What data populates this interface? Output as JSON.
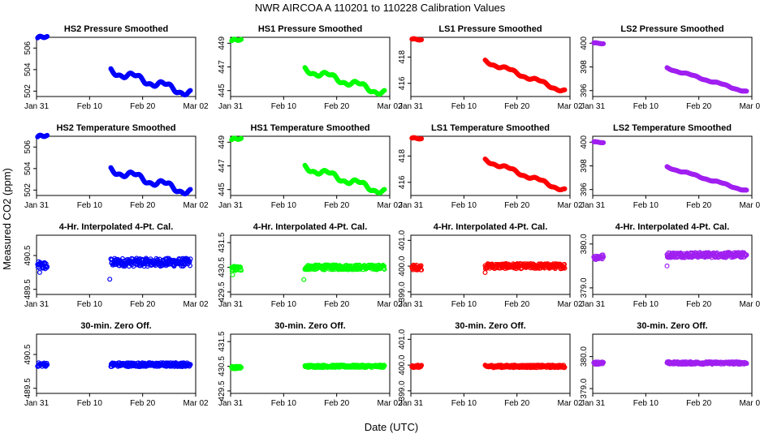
{
  "figure": {
    "title": "NWR   AIRCOA A   110201 to 110228   Calibration Values",
    "ylabel": "Measured CO2 (ppm)",
    "xlabel": "Date (UTC)",
    "x_ticks": [
      "Jan 31",
      "Feb 10",
      "Feb 20",
      "Mar 02"
    ]
  },
  "colors": {
    "blue": "#0000ff",
    "green": "#00ff00",
    "red": "#ff0000",
    "purple": "#a020f0"
  },
  "chart_data": [
    {
      "type": "scatter",
      "row": 0,
      "col": 0,
      "title": "HS2 Pressure Smoothed",
      "color": "blue",
      "ylim": [
        501.5,
        507
      ],
      "yticks": [
        502,
        504,
        506
      ],
      "ytick_labels": [
        "502",
        "504",
        "506"
      ],
      "segments": [
        {
          "x": [
            0.2,
            2
          ],
          "y": [
            506.8,
            506.8
          ]
        },
        {
          "x": [
            14,
            29
          ],
          "y": [
            503.9,
            501.8
          ]
        }
      ],
      "wiggle": 0.5
    },
    {
      "type": "scatter",
      "row": 0,
      "col": 1,
      "title": "HS1 Pressure Smoothed",
      "color": "green",
      "ylim": [
        444.5,
        449.5
      ],
      "yticks": [
        445,
        447,
        449
      ],
      "ytick_labels": [
        "445",
        "447",
        "449"
      ],
      "segments": [
        {
          "x": [
            0.2,
            2
          ],
          "y": [
            449.1,
            449.1
          ]
        },
        {
          "x": [
            14,
            29
          ],
          "y": [
            446.8,
            444.8
          ]
        }
      ],
      "wiggle": 0.4
    },
    {
      "type": "scatter",
      "row": 0,
      "col": 2,
      "title": "LS1 Pressure Smoothed",
      "color": "red",
      "ylim": [
        415,
        419.5
      ],
      "yticks": [
        416,
        418
      ],
      "ytick_labels": [
        "416",
        "418"
      ],
      "segments": [
        {
          "x": [
            0.2,
            2
          ],
          "y": [
            419.3,
            419.2
          ]
        },
        {
          "x": [
            14,
            29
          ],
          "y": [
            417.7,
            415.4
          ]
        }
      ],
      "wiggle": 0.2
    },
    {
      "type": "scatter",
      "row": 0,
      "col": 3,
      "title": "LS2 Pressure Smoothed",
      "color": "purple",
      "ylim": [
        395.5,
        400.5
      ],
      "yticks": [
        396,
        398,
        400
      ],
      "ytick_labels": [
        "396",
        "398",
        "400"
      ],
      "segments": [
        {
          "x": [
            0.2,
            2
          ],
          "y": [
            400.0,
            399.9
          ]
        },
        {
          "x": [
            14,
            29
          ],
          "y": [
            397.9,
            395.9
          ]
        }
      ],
      "wiggle": 0.1
    },
    {
      "type": "scatter",
      "row": 1,
      "col": 0,
      "title": "HS2 Temperature Smoothed",
      "color": "blue",
      "ylim": [
        501.5,
        507
      ],
      "yticks": [
        502,
        504,
        506
      ],
      "ytick_labels": [
        "502",
        "504",
        "506"
      ],
      "segments": [
        {
          "x": [
            0.2,
            2
          ],
          "y": [
            506.8,
            506.8
          ]
        },
        {
          "x": [
            14,
            29
          ],
          "y": [
            503.9,
            501.8
          ]
        }
      ],
      "wiggle": 0.5
    },
    {
      "type": "scatter",
      "row": 1,
      "col": 1,
      "title": "HS1 Temperature Smoothed",
      "color": "green",
      "ylim": [
        444.5,
        449.5
      ],
      "yticks": [
        445,
        447,
        449
      ],
      "ytick_labels": [
        "445",
        "447",
        "449"
      ],
      "segments": [
        {
          "x": [
            0.2,
            2
          ],
          "y": [
            449.1,
            449.1
          ]
        },
        {
          "x": [
            14,
            29
          ],
          "y": [
            446.9,
            444.8
          ]
        }
      ],
      "wiggle": 0.4
    },
    {
      "type": "scatter",
      "row": 1,
      "col": 2,
      "title": "LS1 Temperature Smoothed",
      "color": "red",
      "ylim": [
        415,
        419.5
      ],
      "yticks": [
        416,
        418
      ],
      "ytick_labels": [
        "416",
        "418"
      ],
      "segments": [
        {
          "x": [
            0.2,
            2
          ],
          "y": [
            419.3,
            419.2
          ]
        },
        {
          "x": [
            14,
            29
          ],
          "y": [
            417.7,
            415.4
          ]
        }
      ],
      "wiggle": 0.2
    },
    {
      "type": "scatter",
      "row": 1,
      "col": 3,
      "title": "LS2 Temperature Smoothed",
      "color": "purple",
      "ylim": [
        395.5,
        400.5
      ],
      "yticks": [
        396,
        398,
        400
      ],
      "ytick_labels": [
        "396",
        "398",
        "400"
      ],
      "segments": [
        {
          "x": [
            0.2,
            2
          ],
          "y": [
            400.0,
            399.9
          ]
        },
        {
          "x": [
            14,
            29
          ],
          "y": [
            397.9,
            395.9
          ]
        }
      ],
      "wiggle": 0.1
    },
    {
      "type": "scatter",
      "row": 2,
      "col": 0,
      "title": "4-Hr. Interpolated 4-Pt. Cal.",
      "color": "blue",
      "ylim": [
        489.35,
        491.1
      ],
      "yticks": [
        489.5,
        490.5
      ],
      "ytick_labels": [
        "489.5",
        "490.5"
      ],
      "segments": [
        {
          "x": [
            0.2,
            2
          ],
          "y": [
            490.2,
            490.2
          ]
        },
        {
          "x": [
            14,
            29
          ],
          "y": [
            490.3,
            490.3
          ]
        }
      ],
      "noise": 0.12,
      "outliers": [
        {
          "x": 13.8,
          "y": 489.8
        },
        {
          "x": 0.6,
          "y": 490.0
        }
      ]
    },
    {
      "type": "scatter",
      "row": 2,
      "col": 1,
      "title": "4-Hr. Interpolated 4-Pt. Cal.",
      "color": "green",
      "ylim": [
        429.4,
        431.8
      ],
      "yticks": [
        429.5,
        430.5,
        431.5
      ],
      "ytick_labels": [
        "429.5",
        "430.5",
        "431.5"
      ],
      "segments": [
        {
          "x": [
            0.2,
            2
          ],
          "y": [
            430.45,
            430.45
          ]
        },
        {
          "x": [
            14,
            29
          ],
          "y": [
            430.5,
            430.5
          ]
        }
      ],
      "noise": 0.1,
      "outliers": [
        {
          "x": 13.8,
          "y": 430.0
        },
        {
          "x": 0.4,
          "y": 430.2
        }
      ]
    },
    {
      "type": "scatter",
      "row": 2,
      "col": 2,
      "title": "4-Hr. Interpolated 4-Pt. Cal.",
      "color": "red",
      "ylim": [
        398.9,
        401.2
      ],
      "yticks": [
        399.0,
        400.0,
        401.0
      ],
      "ytick_labels": [
        "399.0",
        "400.0",
        "401.0"
      ],
      "segments": [
        {
          "x": [
            0.2,
            2
          ],
          "y": [
            399.95,
            399.95
          ]
        },
        {
          "x": [
            14,
            29
          ],
          "y": [
            400.0,
            400.0
          ]
        }
      ],
      "noise": 0.1,
      "outliers": [
        {
          "x": 14,
          "y": 399.75
        }
      ]
    },
    {
      "type": "scatter",
      "row": 2,
      "col": 3,
      "title": "4-Hr. Interpolated 4-Pt. Cal.",
      "color": "purple",
      "ylim": [
        378.85,
        380.2
      ],
      "yticks": [
        379.0,
        380.0
      ],
      "ytick_labels": [
        "379.0",
        "380.0"
      ],
      "segments": [
        {
          "x": [
            0.2,
            2
          ],
          "y": [
            379.7,
            379.7
          ]
        },
        {
          "x": [
            14,
            29
          ],
          "y": [
            379.75,
            379.75
          ]
        }
      ],
      "noise": 0.06,
      "outliers": [
        {
          "x": 14,
          "y": 379.5
        }
      ]
    },
    {
      "type": "scatter",
      "row": 3,
      "col": 0,
      "title": "30-min. Zero Off.",
      "color": "blue",
      "ylim": [
        489.35,
        491.1
      ],
      "yticks": [
        489.5,
        490.5
      ],
      "ytick_labels": [
        "489.5",
        "490.5"
      ],
      "segments": [
        {
          "x": [
            0.2,
            2
          ],
          "y": [
            490.2,
            490.2
          ]
        },
        {
          "x": [
            14,
            29
          ],
          "y": [
            490.2,
            490.2
          ]
        }
      ],
      "noise": 0.06
    },
    {
      "type": "scatter",
      "row": 3,
      "col": 1,
      "title": "30-min. Zero Off.",
      "color": "green",
      "ylim": [
        429.4,
        431.8
      ],
      "yticks": [
        429.5,
        430.5,
        431.5
      ],
      "ytick_labels": [
        "429.5",
        "430.5",
        "431.5"
      ],
      "segments": [
        {
          "x": [
            0.2,
            2
          ],
          "y": [
            430.45,
            430.45
          ]
        },
        {
          "x": [
            14,
            29
          ],
          "y": [
            430.5,
            430.5
          ]
        }
      ],
      "noise": 0.05
    },
    {
      "type": "scatter",
      "row": 3,
      "col": 2,
      "title": "30-min. Zero Off.",
      "color": "red",
      "ylim": [
        398.9,
        401.2
      ],
      "yticks": [
        399.0,
        400.0,
        401.0
      ],
      "ytick_labels": [
        "399.0",
        "400.0",
        "401.0"
      ],
      "segments": [
        {
          "x": [
            0.2,
            2
          ],
          "y": [
            399.95,
            399.95
          ]
        },
        {
          "x": [
            14,
            29
          ],
          "y": [
            399.95,
            399.95
          ]
        }
      ],
      "noise": 0.05
    },
    {
      "type": "scatter",
      "row": 3,
      "col": 3,
      "title": "30-min. Zero Off.",
      "color": "purple",
      "ylim": [
        378.85,
        380.7
      ],
      "yticks": [
        379.0,
        380.0
      ],
      "ytick_labels": [
        "379.0",
        "380.0"
      ],
      "segments": [
        {
          "x": [
            0.2,
            2
          ],
          "y": [
            379.8,
            379.8
          ]
        },
        {
          "x": [
            14,
            29
          ],
          "y": [
            379.8,
            379.8
          ]
        }
      ],
      "noise": 0.04
    }
  ]
}
